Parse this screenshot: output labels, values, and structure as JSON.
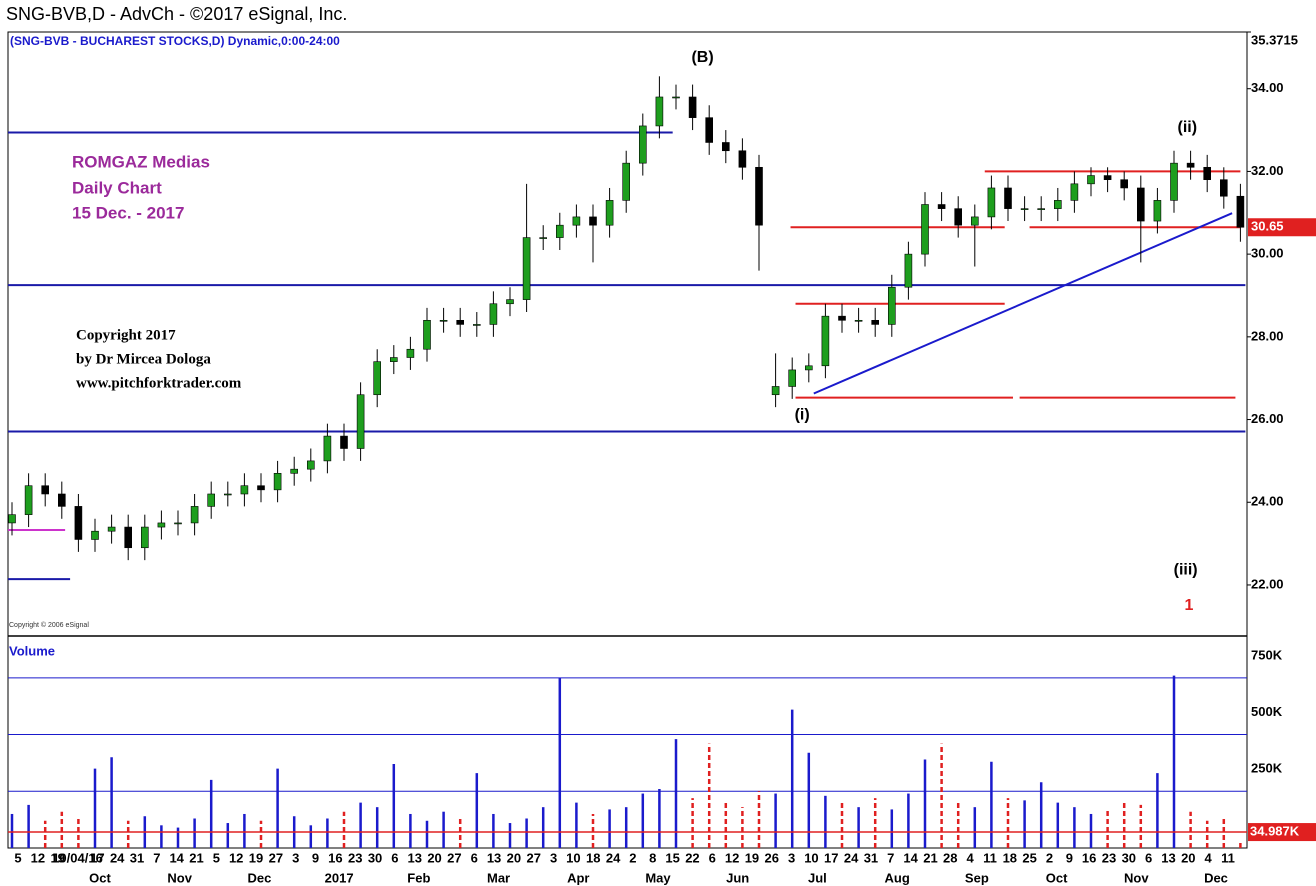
{
  "chart_data": {
    "type": "candlestick",
    "title": "SNG-BVB,D - AdvCh - ©2017 eSignal, Inc.",
    "subtitle": "(SNG-BVB - BUCHAREST STOCKS,D) Dynamic,0:00-24:00",
    "notes": [
      "ROMGAZ Medias",
      "Daily Chart",
      "15 Dec. -  2017"
    ],
    "copyright": [
      "Copyright 2017",
      "by Dr Mircea Dologa",
      "www.pitchforktrader.com"
    ],
    "source_note": "Copyright © 2006 eSignal",
    "open": [
      23.5,
      23.7,
      24.4,
      24.2,
      23.9,
      23.1,
      23.3,
      23.4,
      22.9,
      23.4,
      23.5,
      23.5,
      23.9,
      24.2,
      24.2,
      24.4,
      24.3,
      24.7,
      24.8,
      25.0,
      25.6,
      25.3,
      26.6,
      27.4,
      27.5,
      27.7,
      28.4,
      28.4,
      28.3,
      28.3,
      28.8,
      28.9,
      30.4,
      30.4,
      30.7,
      30.9,
      30.7,
      31.3,
      32.2,
      33.1,
      33.8,
      33.8,
      33.3,
      32.7,
      32.5,
      32.1,
      26.6,
      26.8,
      27.2,
      27.3,
      28.5,
      28.4,
      28.4,
      28.3,
      29.2,
      30.0,
      31.2,
      31.1,
      30.7,
      30.9,
      31.6,
      31.1,
      31.1,
      31.1,
      31.3,
      31.7,
      31.9,
      31.8,
      31.6,
      30.8,
      31.3,
      32.2,
      32.1,
      31.8,
      31.4
    ],
    "high": [
      24.0,
      24.7,
      24.7,
      24.5,
      24.2,
      23.6,
      23.7,
      23.7,
      23.7,
      23.8,
      23.8,
      24.2,
      24.5,
      24.5,
      24.7,
      24.7,
      25.0,
      25.1,
      25.3,
      25.9,
      25.9,
      26.9,
      27.7,
      27.8,
      28.0,
      28.7,
      28.7,
      28.7,
      28.6,
      29.1,
      29.2,
      31.7,
      30.7,
      31.0,
      31.2,
      31.2,
      31.6,
      32.5,
      33.4,
      34.3,
      34.1,
      34.1,
      33.6,
      33.0,
      32.8,
      32.4,
      27.6,
      27.5,
      27.6,
      28.8,
      28.8,
      28.7,
      28.7,
      29.5,
      30.3,
      31.5,
      31.5,
      31.4,
      31.2,
      31.9,
      31.9,
      31.4,
      31.4,
      31.6,
      32.0,
      32.1,
      32.1,
      32.0,
      31.9,
      31.6,
      32.5,
      32.5,
      32.4,
      32.1,
      31.7
    ],
    "low": [
      23.2,
      23.4,
      23.9,
      23.6,
      22.8,
      22.8,
      23.0,
      22.6,
      22.6,
      23.1,
      23.2,
      23.2,
      23.6,
      23.9,
      23.9,
      24.0,
      24.0,
      24.4,
      24.5,
      24.7,
      25.0,
      25.0,
      26.3,
      27.1,
      27.2,
      27.4,
      28.1,
      28.0,
      28.0,
      28.0,
      28.5,
      28.6,
      30.1,
      30.1,
      30.4,
      29.8,
      30.4,
      31.0,
      31.9,
      32.8,
      33.5,
      33.0,
      32.4,
      32.2,
      31.8,
      29.6,
      26.3,
      26.5,
      26.9,
      27.0,
      28.1,
      28.1,
      28.0,
      28.0,
      28.9,
      29.7,
      30.8,
      30.4,
      29.7,
      30.6,
      30.8,
      30.8,
      30.8,
      30.8,
      31.0,
      31.4,
      31.5,
      31.3,
      29.8,
      30.5,
      31.0,
      31.8,
      31.5,
      31.1,
      30.3
    ],
    "close": [
      23.7,
      24.4,
      24.2,
      23.9,
      23.1,
      23.3,
      23.4,
      22.9,
      23.4,
      23.5,
      23.5,
      23.9,
      24.2,
      24.2,
      24.4,
      24.3,
      24.7,
      24.8,
      25.0,
      25.6,
      25.3,
      26.6,
      27.4,
      27.5,
      27.7,
      28.4,
      28.4,
      28.3,
      28.3,
      28.8,
      28.9,
      30.4,
      30.4,
      30.7,
      30.9,
      30.7,
      31.3,
      32.2,
      33.1,
      33.8,
      33.8,
      33.3,
      32.7,
      32.5,
      32.1,
      30.7,
      26.8,
      27.2,
      27.3,
      28.5,
      28.4,
      28.4,
      28.3,
      29.2,
      30.0,
      31.2,
      31.1,
      30.7,
      30.9,
      31.6,
      31.1,
      31.1,
      31.1,
      31.3,
      31.7,
      31.9,
      31.8,
      31.6,
      30.8,
      31.3,
      32.2,
      32.1,
      31.8,
      31.4,
      30.65
    ],
    "up_color": "#1e9e1e",
    "down_color": "#000000",
    "ylim": [
      20.79,
      35.3715
    ],
    "yticks": [
      {
        "value": 22,
        "label": "22.00"
      },
      {
        "value": 24,
        "label": "24.00"
      },
      {
        "value": 26,
        "label": "26.00"
      },
      {
        "value": 28,
        "label": "28.00"
      },
      {
        "value": 30,
        "label": "30.00"
      },
      {
        "value": 32,
        "label": "32.00"
      },
      {
        "value": 34,
        "label": "34.00"
      },
      35.3715
    ],
    "last_price": {
      "value": 30.65,
      "label": "30.65"
    },
    "levels": [
      {
        "value": 32.94,
        "x": [
          -0.24,
          39.8
        ],
        "color": "#1a1aa8"
      },
      {
        "value": 29.25,
        "x": [
          -0.24,
          74.3
        ],
        "color": "#1a1aa8"
      },
      {
        "value": 25.71,
        "x": [
          -0.24,
          74.3
        ],
        "color": "#1a1aa8"
      },
      {
        "value": 22.14,
        "x": [
          -0.24,
          3.5
        ],
        "color": "#1a1aa8"
      },
      {
        "value": 23.33,
        "x": [
          -0.24,
          3.2
        ],
        "color": "#cc33cc"
      },
      {
        "value": 32.0,
        "x": [
          58.6,
          74.0
        ],
        "color": "#e02020"
      },
      {
        "value": 30.65,
        "x": [
          46.9,
          59.8
        ],
        "color": "#e02020"
      },
      {
        "value": 30.65,
        "x": [
          61.3,
          74.0
        ],
        "color": "#e02020"
      },
      {
        "value": 28.8,
        "x": [
          47.2,
          59.8
        ],
        "color": "#e02020"
      },
      {
        "value": 26.53,
        "x": [
          47.2,
          60.3
        ],
        "color": "#e02020"
      },
      {
        "value": 26.53,
        "x": [
          60.7,
          73.7
        ],
        "color": "#e02020"
      }
    ],
    "trendline": {
      "x": [
        48.3,
        73.5
      ],
      "y": [
        26.63,
        30.99
      ],
      "color": "#1a1acc"
    },
    "wave_labels": [
      {
        "text": "(B)",
        "x": 41.6,
        "y": 34.75,
        "color": "#000000"
      },
      {
        "text": "(i)",
        "x": 47.6,
        "y": 26.1,
        "color": "#000000"
      },
      {
        "text": "(ii)",
        "x": 70.8,
        "y": 33.05,
        "color": "#000000"
      },
      {
        "text": "(iii)",
        "x": 70.7,
        "y": 22.35,
        "color": "#000000"
      },
      {
        "text": "1",
        "x": 70.9,
        "y": 21.5,
        "color": "#e02020"
      }
    ],
    "x_day_labels": [
      "5",
      "12",
      "19",
      "10/04/16",
      "17",
      "24",
      "31",
      "7",
      "14",
      "21",
      "5",
      "12",
      "19",
      "27",
      "3",
      "9",
      "16",
      "23",
      "30",
      "6",
      "13",
      "20",
      "27",
      "6",
      "13",
      "20",
      "27",
      "3",
      "10",
      "18",
      "24",
      "2",
      "8",
      "15",
      "22",
      "6",
      "12",
      "19",
      "26",
      "3",
      "10",
      "17",
      "24",
      "31",
      "7",
      "14",
      "21",
      "28",
      "4",
      "11",
      "18",
      "25",
      "2",
      "9",
      "16",
      "23",
      "30",
      "6",
      "13",
      "20",
      "4",
      "11"
    ],
    "x_month_labels": [
      "Oct",
      "Nov",
      "Dec",
      "2017",
      "Feb",
      "Mar",
      "Apr",
      "May",
      "Jun",
      "Jul",
      "Aug",
      "Sep",
      "Oct",
      "Nov",
      "Dec"
    ],
    "volume": {
      "title": "Volume",
      "values": [
        150000,
        190000,
        120000,
        160000,
        140000,
        350000,
        400000,
        120000,
        140000,
        100000,
        90000,
        130000,
        300000,
        110000,
        150000,
        120000,
        350000,
        140000,
        100000,
        130000,
        160000,
        200000,
        180000,
        370000,
        150000,
        120000,
        160000,
        140000,
        330000,
        150000,
        110000,
        130000,
        180000,
        750000,
        200000,
        150000,
        170000,
        180000,
        240000,
        260000,
        480000,
        220000,
        460000,
        200000,
        180000,
        250000,
        240000,
        610000,
        420000,
        230000,
        200000,
        180000,
        220000,
        170000,
        240000,
        390000,
        460000,
        200000,
        180000,
        380000,
        220000,
        210000,
        290000,
        200000,
        180000,
        150000,
        170000,
        200000,
        190000,
        330000,
        760000,
        160000,
        120000,
        130000,
        34987
      ],
      "up_color": "#1a1acc",
      "down_color": "#e02020",
      "ylim": [
        0,
        930000
      ],
      "yticks": [
        {
          "value": 250000,
          "label": "250K"
        },
        {
          "value": 500000,
          "label": "500K"
        },
        {
          "value": 750000,
          "label": "750K"
        }
      ],
      "last_volume": {
        "value": 34987,
        "label": "34.987K"
      }
    }
  }
}
